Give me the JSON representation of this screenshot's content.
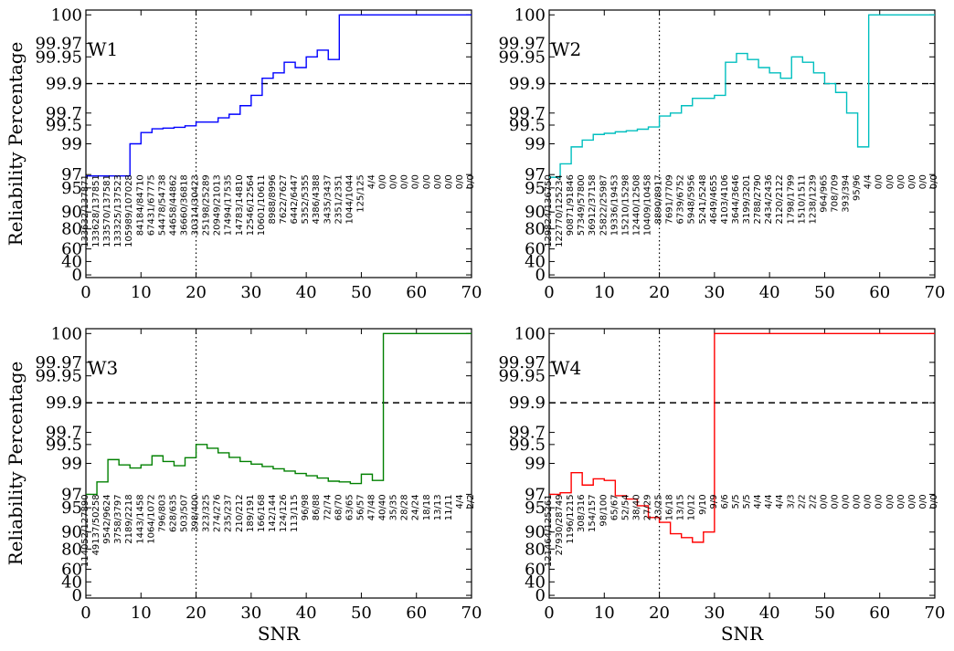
{
  "chart_data": [
    {
      "type": "line",
      "panel": "W1",
      "color": "#0000ff",
      "xlabel": "",
      "ylabel": "Reliability Percentage",
      "xlim": [
        0,
        70
      ],
      "x_ticks": [
        "0",
        "10",
        "20",
        "30",
        "40",
        "50",
        "60",
        "70"
      ],
      "y_ticks": [
        "0",
        "40",
        "60",
        "80",
        "90",
        "95",
        "97",
        "99",
        "99.5",
        "99.7",
        "99.9",
        "99.95",
        "99.97",
        "100"
      ],
      "reference_lines": {
        "horizontal_dashed": 99.9,
        "vertical_dotted": 20
      },
      "x": [
        0,
        2,
        4,
        6,
        8,
        10,
        12,
        14,
        16,
        18,
        20,
        22,
        24,
        26,
        28,
        30,
        32,
        34,
        36,
        38,
        40,
        42,
        44,
        46,
        48,
        50,
        52,
        54,
        56,
        58,
        60,
        62,
        64,
        66,
        68,
        70
      ],
      "values": [
        96.8,
        96.8,
        96.8,
        96.8,
        99.0,
        99.3,
        99.4,
        99.42,
        99.44,
        99.48,
        99.55,
        99.55,
        99.62,
        99.68,
        99.75,
        99.82,
        99.91,
        99.92,
        99.94,
        99.93,
        99.95,
        99.96,
        99.945,
        100,
        100,
        100,
        100,
        100,
        100,
        100,
        100,
        100,
        100,
        100,
        100,
        100
      ],
      "counts": [
        "133632/137871",
        "133628/137851",
        "133570/137581",
        "133325/137523",
        "105989/107028",
        "84184/84710",
        "67431/67775",
        "54478/54738",
        "44658/44862",
        "36660/36818",
        "30314/30423",
        "25198/25289",
        "20949/21013",
        "17494/17535",
        "14783/14810",
        "12546/12564",
        "10601/10611",
        "8988/8996",
        "7622/7627",
        "6442/6447",
        "5352/5355",
        "4386/4388",
        "3435/3437",
        "2351/2351",
        "1044/1044",
        "125/125",
        "4/4",
        "0/0",
        "0/0",
        "0/0",
        "0/0",
        "0/0",
        "0/0",
        "0/0",
        "0/0",
        "0/0"
      ]
    },
    {
      "type": "line",
      "panel": "W2",
      "color": "#00bfbf",
      "xlabel": "",
      "ylabel": "",
      "xlim": [
        0,
        70
      ],
      "x_ticks": [
        "0",
        "10",
        "20",
        "30",
        "40",
        "50",
        "60",
        "70"
      ],
      "y_ticks": [
        "0",
        "40",
        "60",
        "80",
        "90",
        "95",
        "97",
        "99",
        "99.5",
        "99.7",
        "99.9",
        "99.95",
        "99.97",
        "100"
      ],
      "reference_lines": {
        "horizontal_dashed": 99.9,
        "vertical_dotted": 20
      },
      "x": [
        0,
        2,
        4,
        6,
        8,
        10,
        12,
        14,
        16,
        18,
        20,
        22,
        24,
        26,
        28,
        30,
        32,
        34,
        36,
        38,
        40,
        42,
        44,
        46,
        48,
        50,
        52,
        54,
        56,
        58,
        60,
        62,
        64,
        66,
        68,
        70
      ],
      "values": [
        96.6,
        97.7,
        98.8,
        99.1,
        99.25,
        99.28,
        99.32,
        99.35,
        99.39,
        99.45,
        99.65,
        99.7,
        99.75,
        99.8,
        99.8,
        99.82,
        99.94,
        99.955,
        99.945,
        99.93,
        99.92,
        99.91,
        99.95,
        99.94,
        99.92,
        99.9,
        99.84,
        99.7,
        98.8,
        100,
        100,
        100,
        100,
        100,
        100,
        100
      ],
      "counts": [
        "129824/136750",
        "122770/125234",
        "90871/91846",
        "57349/57800",
        "36912/37158",
        "25822/25987",
        "19336/19453",
        "15210/15298",
        "12440/12508",
        "10409/10458",
        "8890/8917",
        "7691/7709",
        "6739/6752",
        "5948/5956",
        "5241/5248",
        "4649/4655",
        "4103/4106",
        "3644/3646",
        "3199/3201",
        "2788/2790",
        "2434/2436",
        "2120/2122",
        "1798/1799",
        "1510/1511",
        "1238/1239",
        "964/965",
        "708/709",
        "393/394",
        "95/96",
        "4/4",
        "0/0",
        "0/0",
        "0/0",
        "0/0",
        "0/0",
        "0/0"
      ]
    },
    {
      "type": "line",
      "panel": "W3",
      "color": "#008000",
      "xlabel": "SNR",
      "ylabel": "Reliability Percentage",
      "xlim": [
        0,
        70
      ],
      "x_ticks": [
        "0",
        "10",
        "20",
        "30",
        "40",
        "50",
        "60",
        "70"
      ],
      "y_ticks": [
        "0",
        "40",
        "60",
        "80",
        "90",
        "95",
        "97",
        "99",
        "99.5",
        "99.7",
        "99.9",
        "99.95",
        "99.97",
        "100"
      ],
      "reference_lines": {
        "horizontal_dashed": 99.9,
        "vertical_dotted": 20
      },
      "x": [
        0,
        2,
        4,
        6,
        8,
        10,
        12,
        14,
        16,
        18,
        20,
        22,
        24,
        26,
        28,
        30,
        32,
        34,
        36,
        38,
        40,
        42,
        44,
        46,
        48,
        50,
        52,
        54,
        56,
        58,
        60,
        62,
        64,
        66,
        68,
        70
      ],
      "values": [
        97.0,
        97.8,
        99.1,
        98.9,
        98.7,
        98.9,
        99.2,
        99.05,
        98.85,
        99.15,
        99.5,
        99.4,
        99.28,
        99.16,
        99.05,
        98.95,
        98.8,
        98.65,
        98.5,
        98.35,
        98.2,
        98.05,
        97.85,
        97.8,
        97.7,
        98.3,
        97.9,
        100,
        100,
        100,
        100,
        100,
        100,
        100,
        100,
        100
      ],
      "counts": [
        "114052/127890",
        "49137/50258",
        "9542/9624",
        "3758/3797",
        "2189/2218",
        "1443/1458",
        "1064/1072",
        "796/803",
        "628/635",
        "503/507",
        "398/400",
        "323/325",
        "274/276",
        "235/237",
        "210/212",
        "189/191",
        "166/168",
        "142/144",
        "124/126",
        "113/115",
        "96/98",
        "86/88",
        "72/74",
        "68/70",
        "63/65",
        "56/57",
        "47/48",
        "40/40",
        "35/35",
        "28/28",
        "24/24",
        "18/18",
        "13/13",
        "11/11",
        "4/4",
        "2/2"
      ]
    },
    {
      "type": "line",
      "panel": "W4",
      "color": "#ff0000",
      "xlabel": "SNR",
      "ylabel": "",
      "xlim": [
        0,
        70
      ],
      "x_ticks": [
        "0",
        "10",
        "20",
        "30",
        "40",
        "50",
        "60",
        "70"
      ],
      "y_ticks": [
        "0",
        "40",
        "60",
        "80",
        "90",
        "95",
        "97",
        "99",
        "99.5",
        "99.7",
        "99.9",
        "99.95",
        "99.97",
        "100"
      ],
      "reference_lines": {
        "horizontal_dashed": 99.9,
        "vertical_dotted": 20
      },
      "x": [
        0,
        2,
        4,
        6,
        8,
        10,
        12,
        14,
        16,
        18,
        20,
        22,
        24,
        26,
        28,
        30,
        32,
        34,
        36,
        38,
        40,
        42,
        44,
        46,
        48,
        50,
        52,
        54,
        56,
        58,
        60,
        62,
        64,
        66,
        68,
        70
      ],
      "values": [
        97.0,
        97.1,
        98.4,
        97.6,
        98.0,
        97.9,
        96.8,
        96.3,
        95.3,
        93.0,
        92.0,
        89.0,
        86.7,
        84.0,
        90.0,
        100,
        100,
        100,
        100,
        100,
        100,
        100,
        100,
        100,
        100,
        100,
        100,
        100,
        100,
        100,
        100,
        100,
        100,
        100,
        100,
        100
      ],
      "counts": [
        "121464/125261",
        "27930/28749",
        "1196/1215",
        "308/316",
        "154/157",
        "98/100",
        "65/67",
        "52/54",
        "38/40",
        "27/29",
        "23/25",
        "16/18",
        "13/15",
        "10/12",
        "9/10",
        "9/9",
        "6/6",
        "5/5",
        "5/5",
        "4/4",
        "4/4",
        "4/4",
        "3/3",
        "2/2",
        "2/2",
        "0/0",
        "0/0",
        "0/0",
        "0/0",
        "0/0",
        "0/0",
        "0/0",
        "0/0",
        "0/0",
        "0/0",
        "0/0"
      ]
    }
  ]
}
